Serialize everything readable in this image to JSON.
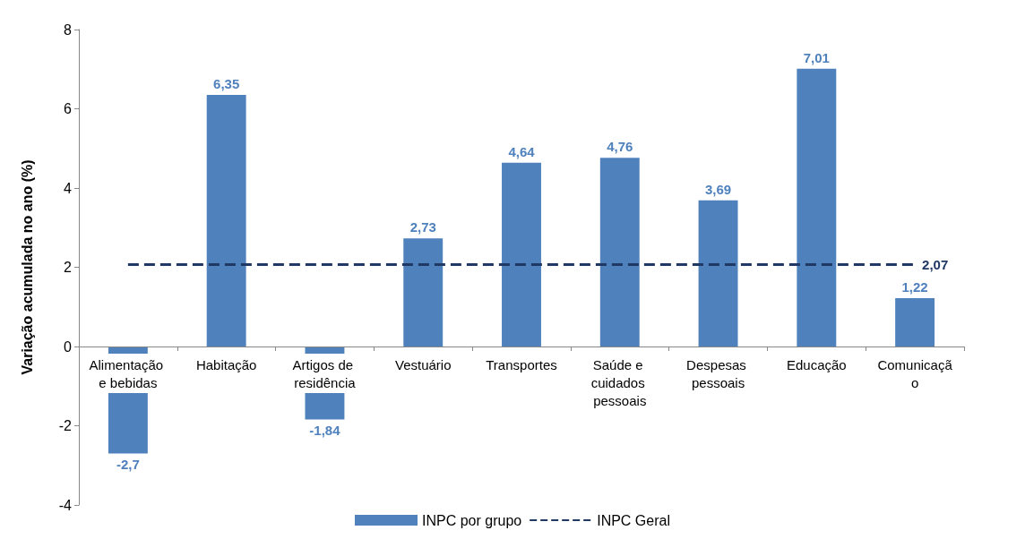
{
  "chart_data": {
    "type": "bar",
    "ylabel": "Variação acumulada no ano (%)",
    "categories": [
      "Alimentação e bebidas",
      "Habitação",
      "Artigos de residência",
      "Vestuário",
      "Transportes",
      "Saúde e cuidados pessoais",
      "Despesas pessoais",
      "Educação",
      "Comunicação"
    ],
    "series": [
      {
        "name": "INPC por grupo",
        "color": "#4f81bd",
        "values": [
          -2.7,
          6.35,
          -1.84,
          2.73,
          4.64,
          4.76,
          3.69,
          7.01,
          1.22
        ],
        "value_labels": [
          "-2,7",
          "6,35",
          "-1,84",
          "2,73",
          "4,64",
          "4,76",
          "3,69",
          "7,01",
          "1,22"
        ]
      },
      {
        "name": "INPC Geral",
        "type": "line",
        "color": "#1f3864",
        "line_style": "dashed",
        "marker": "none",
        "values": [
          2.07,
          2.07,
          2.07,
          2.07,
          2.07,
          2.07,
          2.07,
          2.07,
          2.07
        ],
        "value_labels": [
          null,
          null,
          null,
          null,
          null,
          null,
          null,
          null,
          "2,07"
        ]
      }
    ],
    "ylim": [
      -4,
      8
    ],
    "yticks": [
      -4,
      -2,
      0,
      2,
      4,
      6,
      8
    ],
    "legend": "bottom"
  }
}
